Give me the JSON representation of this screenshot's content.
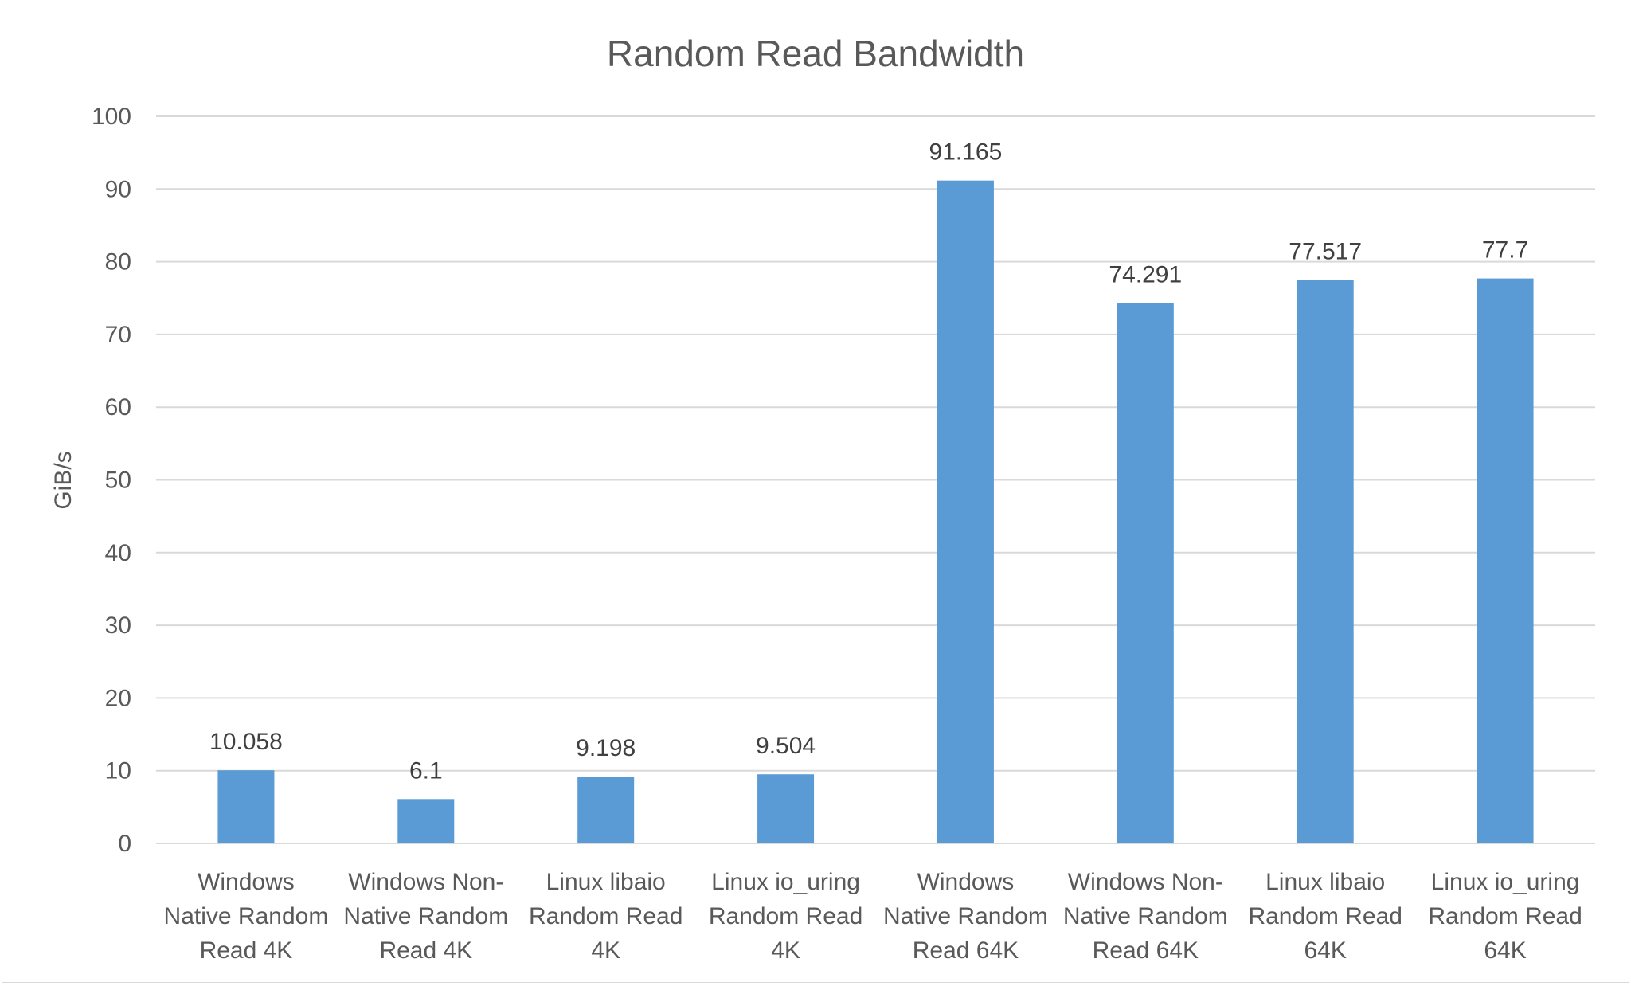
{
  "chart_data": {
    "type": "bar",
    "title": "Random Read Bandwidth",
    "xlabel": "",
    "ylabel": "GiB/s",
    "ylim": [
      0,
      100
    ],
    "yticks": [
      0,
      10,
      20,
      30,
      40,
      50,
      60,
      70,
      80,
      90,
      100
    ],
    "grid": true,
    "legend": "none",
    "bar_color": "#5b9bd5",
    "categories": [
      [
        "Windows",
        "Native Random",
        "Read 4K"
      ],
      [
        "Windows Non-",
        "Native Random",
        "Read 4K"
      ],
      [
        "Linux libaio",
        "Random Read",
        "4K"
      ],
      [
        "Linux io_uring",
        "Random Read",
        "4K"
      ],
      [
        "Windows",
        "Native Random",
        "Read 64K"
      ],
      [
        "Windows Non-",
        "Native Random",
        "Read 64K"
      ],
      [
        "Linux libaio",
        "Random Read",
        "64K"
      ],
      [
        "Linux io_uring",
        "Random Read",
        "64K"
      ]
    ],
    "values": [
      10.058,
      6.1,
      9.198,
      9.504,
      91.165,
      74.291,
      77.517,
      77.7
    ],
    "data_labels": [
      "10.058",
      "6.1",
      "9.198",
      "9.504",
      "91.165",
      "74.291",
      "77.517",
      "77.7"
    ]
  }
}
